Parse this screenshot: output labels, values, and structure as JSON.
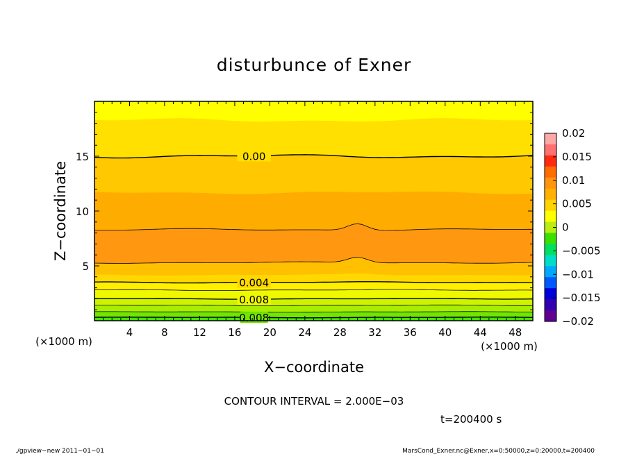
{
  "chart_data": {
    "type": "contour",
    "title": "disturbunce of Exner",
    "xlabel": "X−coordinate",
    "ylabel": "Z−coordinate",
    "x_unit": "(×1000 m)",
    "y_unit": "(×1000 m)",
    "xlim": [
      0,
      50
    ],
    "ylim": [
      0,
      20
    ],
    "x_ticks": [
      4,
      8,
      12,
      16,
      20,
      24,
      28,
      32,
      36,
      40,
      44,
      48
    ],
    "y_ticks": [
      5,
      10,
      15
    ],
    "contour_interval_label": "CONTOUR INTERVAL = 2.000E−03",
    "time_label": "t=200400  s",
    "contour_labels": [
      "0.008",
      "0.008",
      "0.004",
      "0.00"
    ],
    "colorbar": {
      "range": [
        -0.02,
        0.02
      ],
      "ticks": [
        "0.02",
        "0.015",
        "0.01",
        "0.005",
        "0",
        "−0.005",
        "−0.01",
        "−0.015",
        "−0.02"
      ],
      "colors": [
        "#ffa8a8",
        "#ff7070",
        "#ff2a10",
        "#ff6c00",
        "#ff9410",
        "#ffb000",
        "#ffd400",
        "#ffff00",
        "#b8ee10",
        "#3ce000",
        "#00e060",
        "#00ddc8",
        "#00a8ff",
        "#0058ff",
        "#0000d8",
        "#3000b0",
        "#600090"
      ]
    },
    "bands": [
      {
        "z": [
          0.0,
          0.3
        ],
        "color": "#44e200"
      },
      {
        "z": [
          0.3,
          0.8
        ],
        "color": "#72e600"
      },
      {
        "z": [
          0.8,
          1.4
        ],
        "color": "#a8ee00"
      },
      {
        "z": [
          1.4,
          2.0
        ],
        "color": "#cff200"
      },
      {
        "z": [
          2.0,
          2.8
        ],
        "color": "#eef800"
      },
      {
        "z": [
          2.8,
          3.5
        ],
        "color": "#fff000"
      },
      {
        "z": [
          3.5,
          4.2
        ],
        "color": "#ffd800"
      },
      {
        "z": [
          4.2,
          5.3
        ],
        "color": "#ffc000"
      },
      {
        "z": [
          5.3,
          8.3
        ],
        "color": "#ff9810"
      },
      {
        "z": [
          8.3,
          11.7
        ],
        "color": "#ffac00"
      },
      {
        "z": [
          11.7,
          15.0
        ],
        "color": "#ffc800"
      },
      {
        "z": [
          15.0,
          18.3
        ],
        "color": "#ffe000"
      },
      {
        "z": [
          18.3,
          20.0
        ],
        "color": "#ffff00"
      }
    ],
    "contour_lines": [
      {
        "z": 0.3,
        "label": "0.00"
      },
      {
        "z": 0.8
      },
      {
        "z": 1.4
      },
      {
        "z": 2.0,
        "label": "0.004"
      },
      {
        "z": 2.8
      },
      {
        "z": 3.5,
        "label": "0.008"
      },
      {
        "z": 5.3
      },
      {
        "z": 8.3
      },
      {
        "z": 15.0,
        "label": "0.008"
      }
    ]
  },
  "footer": {
    "left": "./gpview−new   2011−01−01",
    "right": "MarsCond_Exner.nc@Exner,x=0:50000,z=0:20000,t=200400"
  }
}
